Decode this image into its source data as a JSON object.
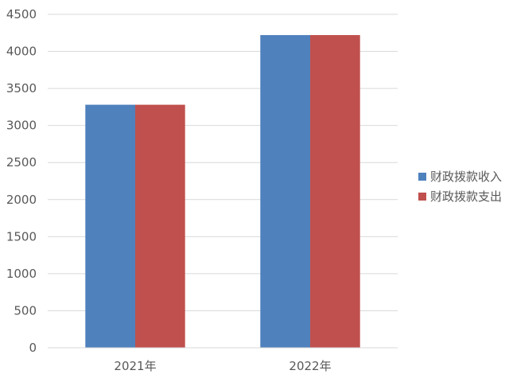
{
  "chart_data": {
    "type": "bar",
    "categories": [
      "2021年",
      "2022年"
    ],
    "series": [
      {
        "name": "财政拨款收入",
        "values": [
          3280,
          4220
        ],
        "color": "#4F81BD"
      },
      {
        "name": "财政拨款支出",
        "values": [
          3280,
          4220
        ],
        "color": "#C0504D"
      }
    ],
    "ylim": [
      0,
      4500
    ],
    "yticks": [
      0,
      500,
      1000,
      1500,
      2000,
      2500,
      3000,
      3500,
      4000,
      4500
    ],
    "grid": true,
    "legend_position": "right"
  }
}
